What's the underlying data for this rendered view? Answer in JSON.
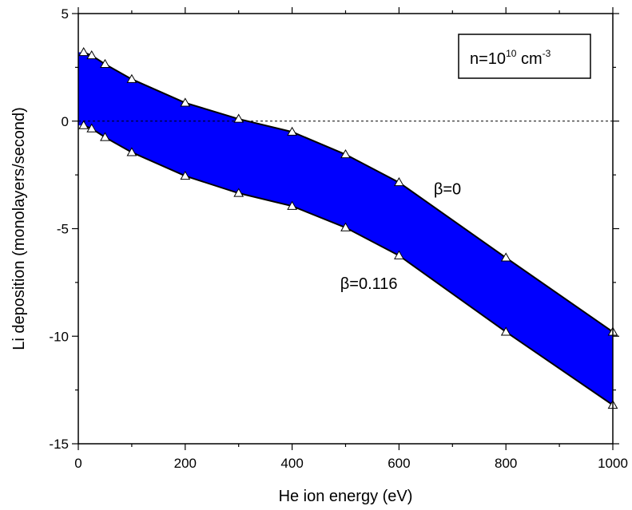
{
  "chart_data": {
    "type": "area",
    "title": "",
    "xlabel": "He ion energy (eV)",
    "ylabel": "Li deposition (monolayers/second)",
    "xlim": [
      0,
      1000
    ],
    "ylim": [
      -15,
      5
    ],
    "xticks": [
      0,
      200,
      400,
      600,
      800,
      1000
    ],
    "yticks": [
      5,
      0,
      -5,
      -10,
      -15
    ],
    "x_tick_labels": [
      "0",
      "200",
      "400",
      "600",
      "800",
      "1000"
    ],
    "y_tick_labels": [
      "5",
      "0",
      "-5",
      "-10",
      "-15"
    ],
    "fill_color": "#0000ff",
    "reference_line_y": 0,
    "series": [
      {
        "name": "β=0",
        "x": [
          10,
          25,
          50,
          100,
          200,
          300,
          400,
          500,
          600,
          800,
          1000
        ],
        "y": [
          3.2,
          3.05,
          2.65,
          1.95,
          0.85,
          0.1,
          -0.5,
          -1.55,
          -2.85,
          -6.35,
          -9.8
        ]
      },
      {
        "name": "β=0.116",
        "x": [
          10,
          25,
          50,
          100,
          200,
          300,
          400,
          500,
          600,
          800,
          1000
        ],
        "y": [
          -0.2,
          -0.35,
          -0.75,
          -1.45,
          -2.55,
          -3.35,
          -3.95,
          -4.95,
          -6.25,
          -9.8,
          -13.2
        ]
      }
    ],
    "annotations": [
      {
        "label": "β=0",
        "x": 665,
        "y": -3.4
      },
      {
        "label": "β=0.116",
        "x": 490,
        "y": -7.8
      }
    ],
    "legend": {
      "base": "n=10",
      "exp1": "10",
      "unit": " cm",
      "exp2": "-3",
      "placement": "top-right"
    }
  }
}
